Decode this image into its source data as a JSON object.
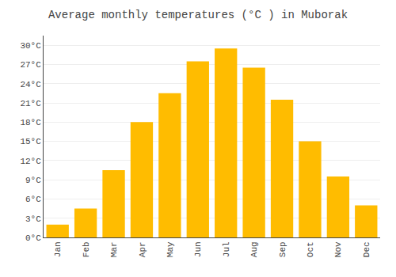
{
  "chart_data": {
    "type": "bar",
    "title": "Average monthly temperatures (°C ) in Muborak",
    "categories": [
      "Jan",
      "Feb",
      "Mar",
      "Apr",
      "May",
      "Jun",
      "Jul",
      "Aug",
      "Sep",
      "Oct",
      "Nov",
      "Dec"
    ],
    "values": [
      2.0,
      4.5,
      10.5,
      18.0,
      22.5,
      27.5,
      29.5,
      26.5,
      21.5,
      15.0,
      9.5,
      5.0
    ],
    "color": "#FFBC00",
    "ylim": [
      0,
      31.5
    ],
    "yticks": [
      {
        "value": 0,
        "label": "0°C"
      },
      {
        "value": 3,
        "label": "3°C"
      },
      {
        "value": 6,
        "label": "6°C"
      },
      {
        "value": 9,
        "label": "9°C"
      },
      {
        "value": 12,
        "label": "12°C"
      },
      {
        "value": 15,
        "label": "15°C"
      },
      {
        "value": 18,
        "label": "18°C"
      },
      {
        "value": 21,
        "label": "21°C"
      },
      {
        "value": 24,
        "label": "24°C"
      },
      {
        "value": 27,
        "label": "27°C"
      },
      {
        "value": 30,
        "label": "30°C"
      }
    ],
    "grid": true
  }
}
